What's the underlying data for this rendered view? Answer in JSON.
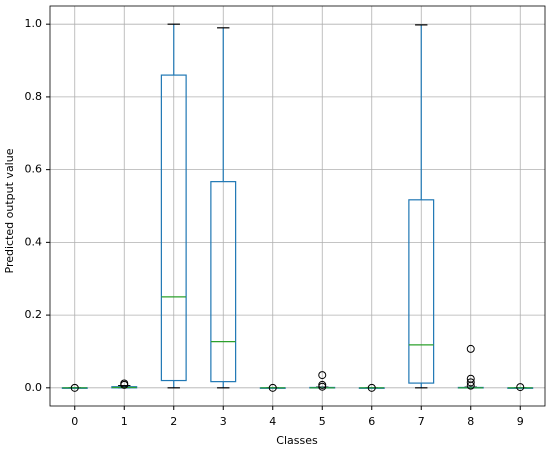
{
  "chart_data": {
    "type": "box",
    "x_label": "Classes",
    "y_label": "Predicted output value",
    "categories": [
      "0",
      "1",
      "2",
      "3",
      "4",
      "5",
      "6",
      "7",
      "8",
      "9"
    ],
    "boxes": [
      {
        "whislo": 0,
        "q1": 0,
        "med": 0,
        "q3": 0,
        "whishi": 0,
        "fliers": [
          0
        ]
      },
      {
        "whislo": 0,
        "q1": 0,
        "med": 0.001,
        "q3": 0.003,
        "whishi": 0.006,
        "fliers": [
          0.012,
          0.008
        ]
      },
      {
        "whislo": 0,
        "q1": 0.02,
        "med": 0.25,
        "q3": 0.86,
        "whishi": 1.0,
        "fliers": []
      },
      {
        "whislo": 0,
        "q1": 0.017,
        "med": 0.127,
        "q3": 0.567,
        "whishi": 0.99,
        "fliers": []
      },
      {
        "whislo": 0,
        "q1": 0,
        "med": 0,
        "q3": 0,
        "whishi": 0,
        "fliers": [
          0
        ]
      },
      {
        "whislo": 0,
        "q1": 0,
        "med": 0,
        "q3": 0.001,
        "whishi": 0.002,
        "fliers": [
          0.035,
          0.008,
          0.003
        ]
      },
      {
        "whislo": 0,
        "q1": 0,
        "med": 0,
        "q3": 0,
        "whishi": 0,
        "fliers": [
          0
        ]
      },
      {
        "whislo": 0,
        "q1": 0.013,
        "med": 0.118,
        "q3": 0.517,
        "whishi": 0.998,
        "fliers": []
      },
      {
        "whislo": 0,
        "q1": 0,
        "med": 0,
        "q3": 0.001,
        "whishi": 0.002,
        "fliers": [
          0.107,
          0.025,
          0.015,
          0.006
        ]
      },
      {
        "whislo": 0,
        "q1": 0,
        "med": 0,
        "q3": 0,
        "whishi": 0,
        "fliers": [
          0.002
        ]
      }
    ],
    "box_color": "#1f77b4",
    "median_color": "#2ca02c",
    "ylim": [
      -0.05,
      1.05
    ],
    "yticks": [
      {
        "value": 0,
        "label": "0.0"
      },
      0.2,
      0.4,
      0.6,
      0.8,
      {
        "value": 1,
        "label": "1.0"
      }
    ],
    "grid": true
  }
}
